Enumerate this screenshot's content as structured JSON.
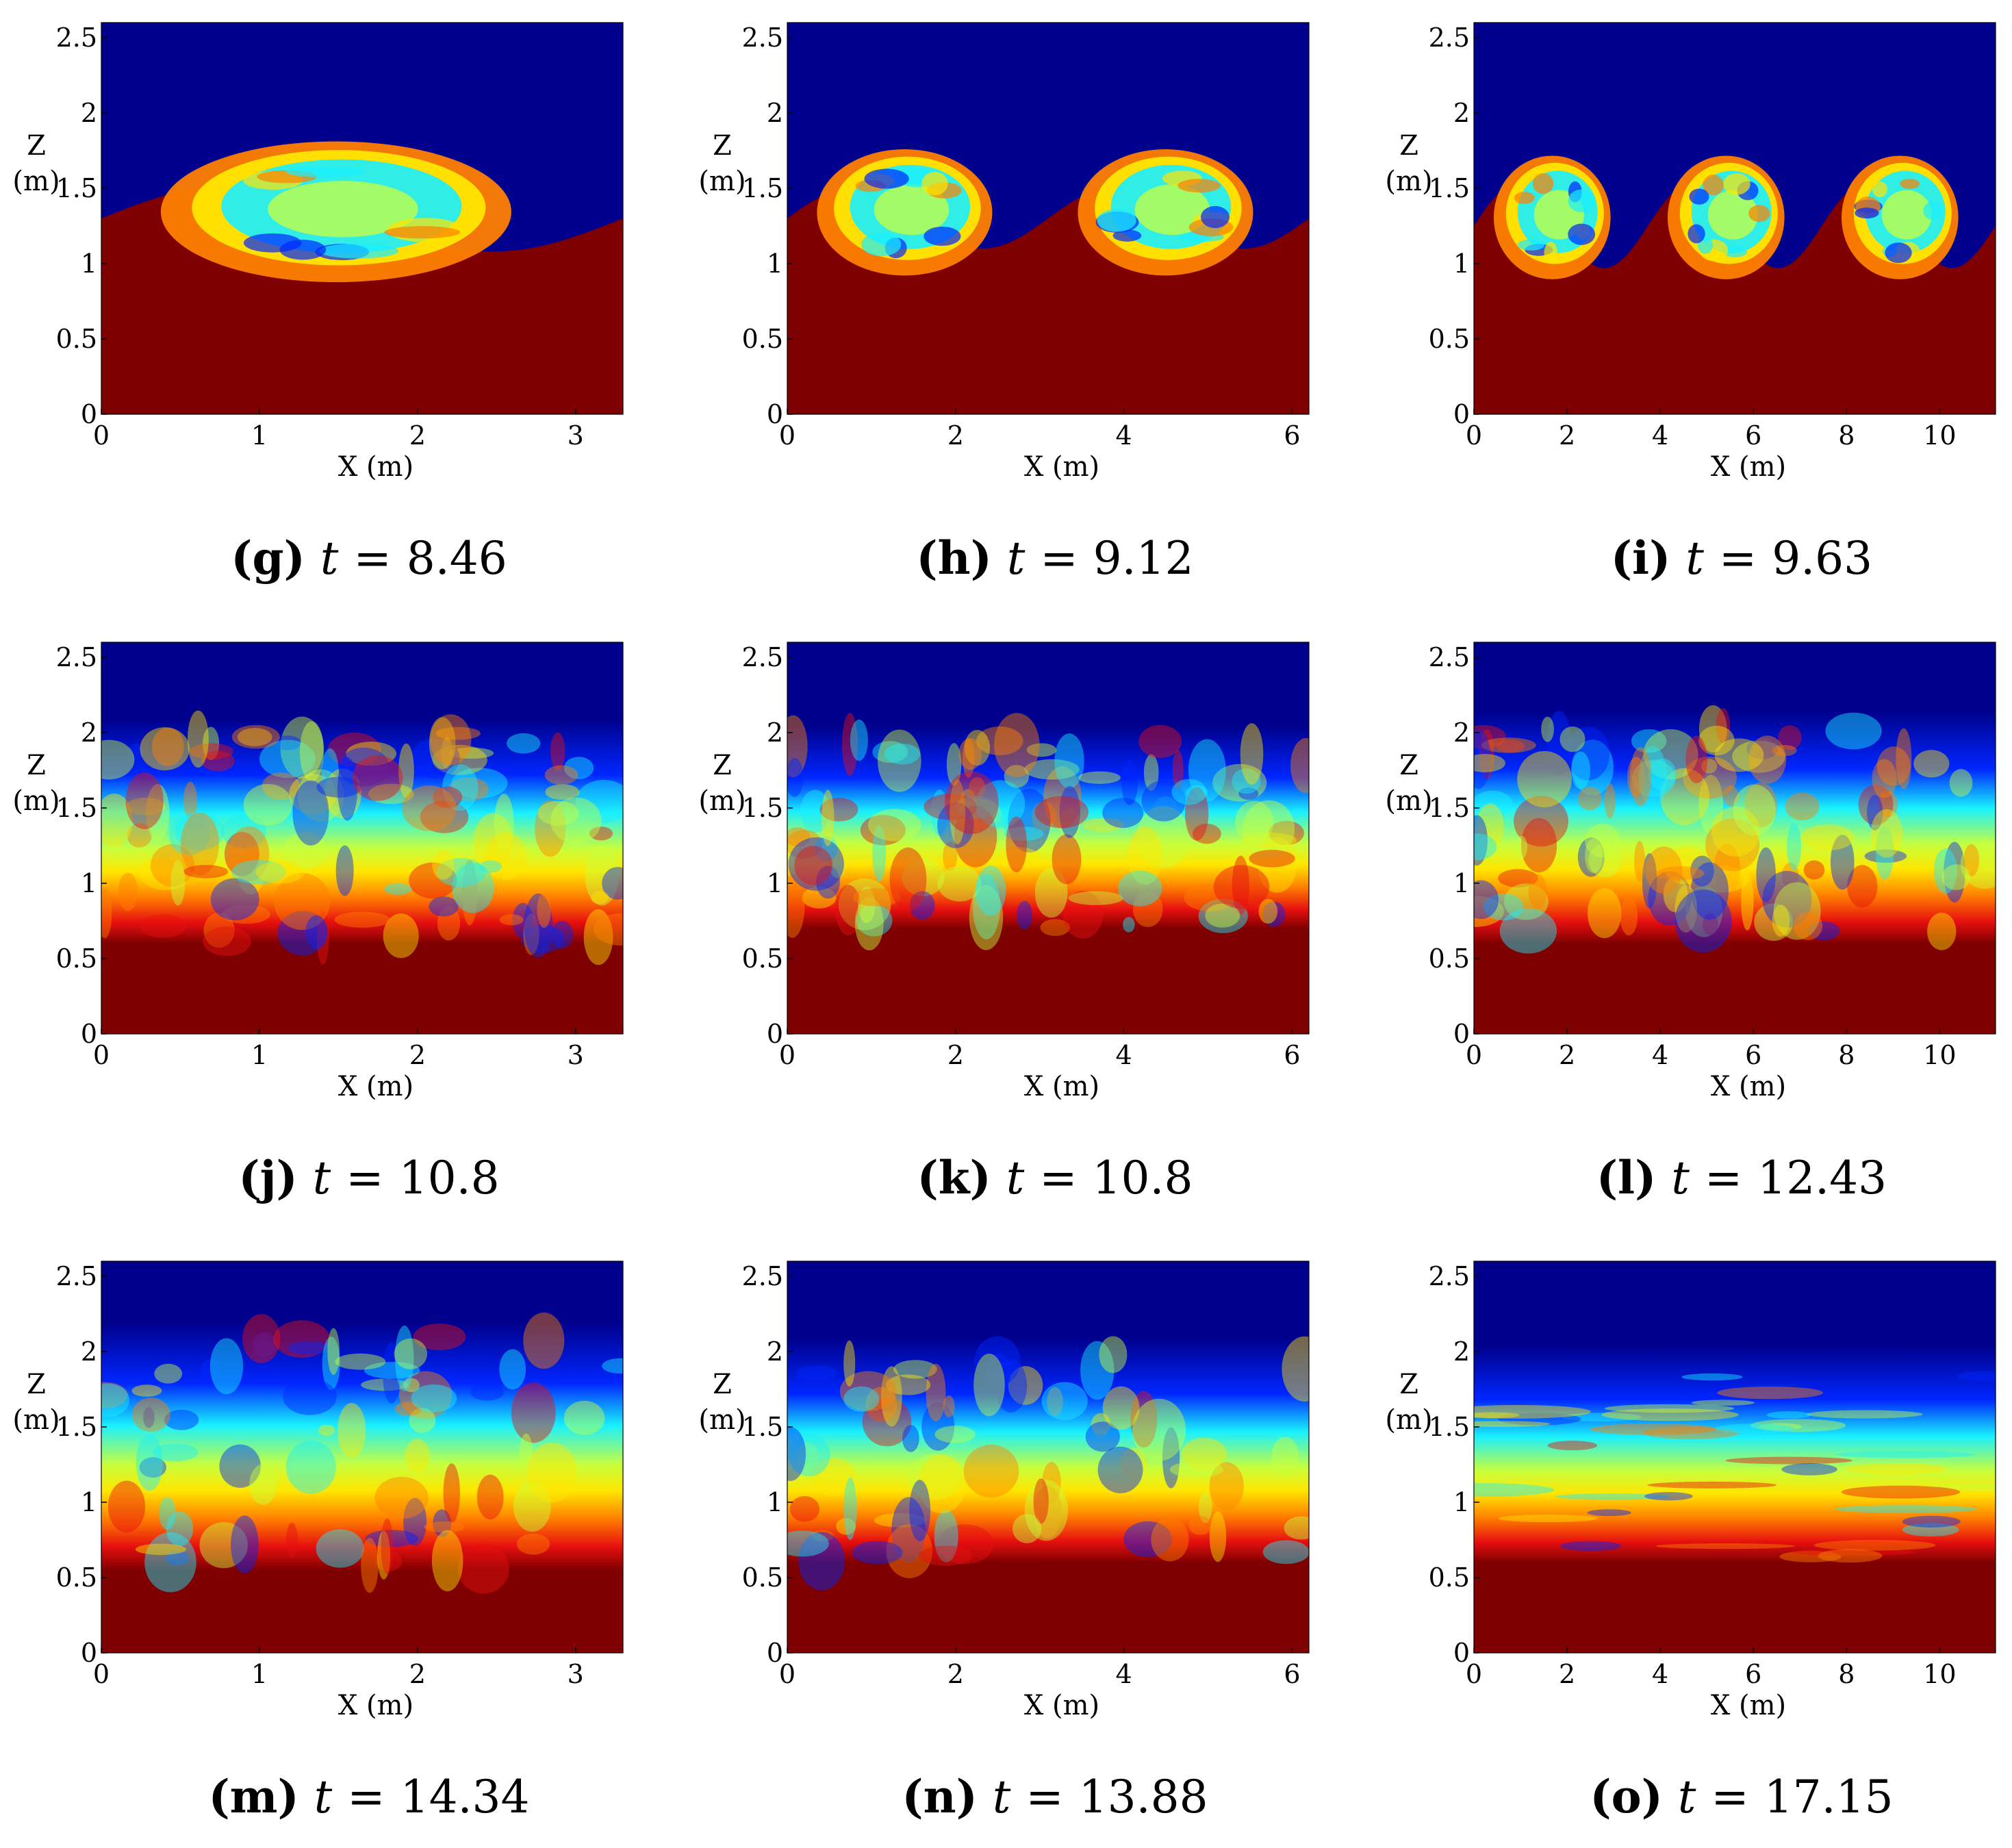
{
  "figure": {
    "colors": {
      "deep_blue": "#00008c",
      "blue": "#0026ff",
      "cyan": "#19f0ff",
      "green_yellow": "#c8ff3c",
      "yellow": "#ffe600",
      "orange": "#ff8000",
      "red": "#e60f0f",
      "dark_red": "#7f0000"
    }
  },
  "chart_data": [
    {
      "id": "g",
      "type": "heatmap",
      "caption_letter": "(g)",
      "caption_var": "t",
      "caption_eq": "=",
      "caption_value": "8.46",
      "xlabel": "X (m)",
      "ylabel_line1": "Z",
      "ylabel_line2": "(m)",
      "xlim": [
        0,
        3.3
      ],
      "ylim": [
        0,
        2.6
      ],
      "xticks": [
        "0",
        "1",
        "2",
        "3"
      ],
      "xtick_values": [
        0,
        1,
        2,
        3
      ],
      "yticks": [
        "0",
        "0.5",
        "1",
        "1.5",
        "2",
        "2.5"
      ],
      "ytick_values": [
        0,
        0.5,
        1,
        1.5,
        2,
        2.5
      ],
      "stage": "billow",
      "waves": 1,
      "mix_base": 0.72,
      "mix_top": 1.78,
      "interface_z": 1.3,
      "amp": 0.22
    },
    {
      "id": "h",
      "type": "heatmap",
      "caption_letter": "(h)",
      "caption_var": "t",
      "caption_eq": "=",
      "caption_value": "9.12",
      "xlabel": "X (m)",
      "ylabel_line1": "Z",
      "ylabel_line2": "(m)",
      "xlim": [
        0,
        6.2
      ],
      "ylim": [
        0,
        2.6
      ],
      "xticks": [
        "0",
        "2",
        "4",
        "6"
      ],
      "xtick_values": [
        0,
        2,
        4,
        6
      ],
      "yticks": [
        "0",
        "0.5",
        "1",
        "1.5",
        "2",
        "2.5"
      ],
      "ytick_values": [
        0,
        0.5,
        1,
        1.5,
        2,
        2.5
      ],
      "stage": "billow",
      "waves": 2,
      "mix_base": 0.85,
      "mix_top": 1.8,
      "interface_z": 1.3,
      "amp": 0.2
    },
    {
      "id": "i",
      "type": "heatmap",
      "caption_letter": "(i)",
      "caption_var": "t",
      "caption_eq": "=",
      "caption_value": "9.63",
      "xlabel": "X (m)",
      "ylabel_line1": "Z",
      "ylabel_line2": "(m)",
      "xlim": [
        0,
        11.2
      ],
      "ylim": [
        0,
        2.6
      ],
      "xticks": [
        "0",
        "2",
        "4",
        "6",
        "8",
        "10"
      ],
      "xtick_values": [
        0,
        2,
        4,
        6,
        8,
        10
      ],
      "yticks": [
        "0",
        "0.5",
        "1",
        "1.5",
        "2",
        "2.5"
      ],
      "ytick_values": [
        0,
        0.5,
        1,
        1.5,
        2,
        2.5
      ],
      "stage": "billow",
      "waves": 3,
      "mix_base": 0.85,
      "mix_top": 1.78,
      "interface_z": 1.25,
      "amp": 0.28
    },
    {
      "id": "j",
      "type": "heatmap",
      "caption_letter": "(j)",
      "caption_var": "t",
      "caption_eq": "=",
      "caption_value": "10.8",
      "xlabel": "X (m)",
      "ylabel_line1": "Z",
      "ylabel_line2": "(m)",
      "xlim": [
        0,
        3.3
      ],
      "ylim": [
        0,
        2.6
      ],
      "xticks": [
        "0",
        "1",
        "2",
        "3"
      ],
      "xtick_values": [
        0,
        1,
        2,
        3
      ],
      "yticks": [
        "0",
        "0.5",
        "1",
        "1.5",
        "2",
        "2.5"
      ],
      "ytick_values": [
        0,
        0.5,
        1,
        1.5,
        2,
        2.5
      ],
      "stage": "turbulent",
      "waves": 1,
      "mix_base": 0.6,
      "mix_top": 2.0,
      "interface_z": 1.25,
      "amp": 0.15
    },
    {
      "id": "k",
      "type": "heatmap",
      "caption_letter": "(k)",
      "caption_var": "t",
      "caption_eq": "=",
      "caption_value": "10.8",
      "xlabel": "X (m)",
      "ylabel_line1": "Z",
      "ylabel_line2": "(m)",
      "xlim": [
        0,
        6.2
      ],
      "ylim": [
        0,
        2.6
      ],
      "xticks": [
        "0",
        "2",
        "4",
        "6"
      ],
      "xtick_values": [
        0,
        2,
        4,
        6
      ],
      "yticks": [
        "0",
        "0.5",
        "1",
        "1.5",
        "2",
        "2.5"
      ],
      "ytick_values": [
        0,
        0.5,
        1,
        1.5,
        2,
        2.5
      ],
      "stage": "turbulent",
      "waves": 2,
      "mix_base": 0.7,
      "mix_top": 1.95,
      "interface_z": 1.25,
      "amp": 0.1
    },
    {
      "id": "l",
      "type": "heatmap",
      "caption_letter": "(l)",
      "caption_var": "t",
      "caption_eq": "=",
      "caption_value": "12.43",
      "xlabel": "X (m)",
      "ylabel_line1": "Z",
      "ylabel_line2": "(m)",
      "xlim": [
        0,
        11.2
      ],
      "ylim": [
        0,
        2.6
      ],
      "xticks": [
        "0",
        "2",
        "4",
        "6",
        "8",
        "10"
      ],
      "xtick_values": [
        0,
        2,
        4,
        6,
        8,
        10
      ],
      "yticks": [
        "0",
        "0.5",
        "1",
        "1.5",
        "2",
        "2.5"
      ],
      "ytick_values": [
        0,
        0.5,
        1,
        1.5,
        2,
        2.5
      ],
      "stage": "turbulent",
      "waves": 3,
      "mix_base": 0.6,
      "mix_top": 2.05,
      "interface_z": 1.25,
      "amp": 0.08
    },
    {
      "id": "m",
      "type": "heatmap",
      "caption_letter": "(m)",
      "caption_var": "t",
      "caption_eq": "=",
      "caption_value": "14.34",
      "xlabel": "X (m)",
      "ylabel_line1": "Z",
      "ylabel_line2": "(m)",
      "xlim": [
        0,
        3.3
      ],
      "ylim": [
        0,
        2.6
      ],
      "xticks": [
        "0",
        "1",
        "2",
        "3"
      ],
      "xtick_values": [
        0,
        1,
        2,
        3
      ],
      "yticks": [
        "0",
        "0.5",
        "1",
        "1.5",
        "2",
        "2.5"
      ],
      "ytick_values": [
        0,
        0.5,
        1,
        1.5,
        2,
        2.5
      ],
      "stage": "diffuse",
      "waves": 1,
      "mix_base": 0.55,
      "mix_top": 2.1,
      "interface_z": 1.25,
      "amp": 0.12
    },
    {
      "id": "n",
      "type": "heatmap",
      "caption_letter": "(n)",
      "caption_var": "t",
      "caption_eq": "=",
      "caption_value": "13.88",
      "xlabel": "X (m)",
      "ylabel_line1": "Z",
      "ylabel_line2": "(m)",
      "xlim": [
        0,
        6.2
      ],
      "ylim": [
        0,
        2.6
      ],
      "xticks": [
        "0",
        "2",
        "4",
        "6"
      ],
      "xtick_values": [
        0,
        2,
        4,
        6
      ],
      "yticks": [
        "0",
        "0.5",
        "1",
        "1.5",
        "2",
        "2.5"
      ],
      "ytick_values": [
        0,
        0.5,
        1,
        1.5,
        2,
        2.5
      ],
      "stage": "diffuse",
      "waves": 2,
      "mix_base": 0.6,
      "mix_top": 2.0,
      "interface_z": 1.25,
      "amp": 0.08
    },
    {
      "id": "o",
      "type": "heatmap",
      "caption_letter": "(o)",
      "caption_var": "t",
      "caption_eq": "=",
      "caption_value": "17.15",
      "xlabel": "X (m)",
      "ylabel_line1": "Z",
      "ylabel_line2": "(m)",
      "xlim": [
        0,
        11.2
      ],
      "ylim": [
        0,
        2.6
      ],
      "xticks": [
        "0",
        "2",
        "4",
        "6",
        "8",
        "10"
      ],
      "xtick_values": [
        0,
        2,
        4,
        6,
        8,
        10
      ],
      "yticks": [
        "0",
        "0.5",
        "1",
        "1.5",
        "2",
        "2.5"
      ],
      "ytick_values": [
        0,
        0.5,
        1,
        1.5,
        2,
        2.5
      ],
      "stage": "layered",
      "waves": 3,
      "mix_base": 0.6,
      "mix_top": 1.95,
      "interface_z": 1.25,
      "amp": 0.02
    }
  ]
}
